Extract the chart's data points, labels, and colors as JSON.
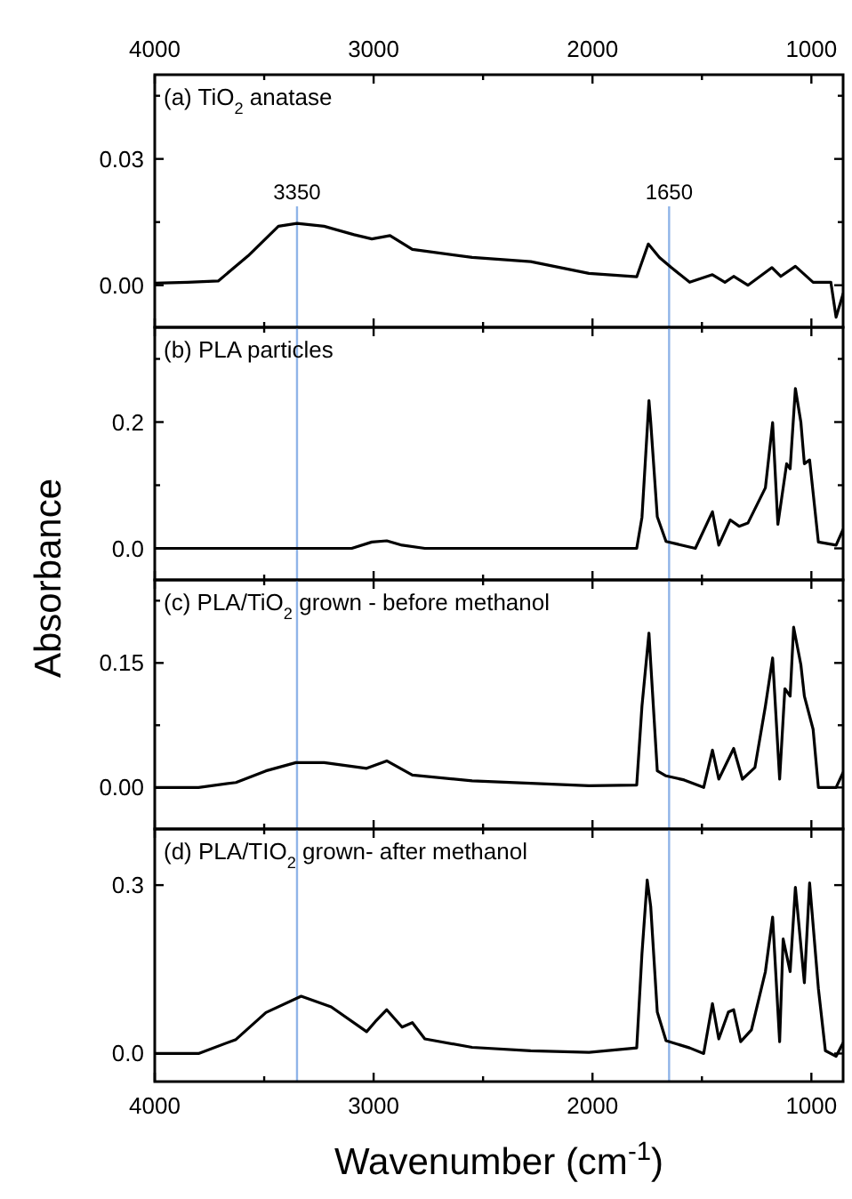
{
  "chart_data": [
    {
      "type": "line",
      "annotations": [
        "(a) TiO$_{2}$ anatase"
      ],
      "xlim": [
        4000,
        855
      ],
      "xticks": [
        4000,
        {
          "value": 3500,
          "label": null
        },
        3000,
        {
          "value": 2500,
          "label": null
        },
        2000,
        {
          "value": 1500,
          "label": null
        },
        1000
      ],
      "x2lim": [
        4000,
        855
      ],
      "x2ticks": [
        4000,
        {
          "value": 3500,
          "label": null
        },
        3000,
        {
          "value": 2500,
          "label": null
        },
        2000,
        {
          "value": 1500,
          "label": null
        },
        1000
      ],
      "ylim": [
        -0.01,
        0.05
      ],
      "yticks": [
        {
          "value": 0,
          "label": "0.00"
        },
        {
          "value": 0.015,
          "label": null
        },
        0.03,
        {
          "value": 0.045,
          "label": null
        }
      ],
      "tick_labels": "y",
      "ref_lines": [
        {
          "axis": "x",
          "value": 3350,
          "label": "3350",
          "color": "#8fb4e8"
        },
        {
          "axis": "x",
          "value": 1650,
          "label": "1650",
          "color": "#8fb4e8"
        }
      ],
      "series": [
        {
          "color": "#000000",
          "x": [
            4000,
            3850,
            3710,
            3573,
            3435,
            3350,
            3226,
            3089,
            3008,
            2925,
            2823,
            2550,
            2282,
            2016,
            1798,
            1745,
            1694,
            1640,
            1556,
            1452,
            1395,
            1355,
            1290,
            1180,
            1140,
            1073,
            992,
            911,
            887,
            855
          ],
          "values": [
            0.0005,
            0.0007,
            0.001,
            0.007,
            0.014,
            0.0147,
            0.014,
            0.012,
            0.011,
            0.0118,
            0.0085,
            0.0066,
            0.0056,
            0.0028,
            0.002,
            0.0098,
            0.0066,
            0.0042,
            0.0007,
            0.0025,
            0.0007,
            0.0021,
            0.0,
            0.0042,
            0.0021,
            0.0045,
            0.0007,
            0.0007,
            -0.0076,
            -0.002
          ]
        }
      ]
    },
    {
      "type": "line",
      "annotations": [
        "(b) PLA particles"
      ],
      "xlim": [
        4000,
        855
      ],
      "xticks": [
        4000,
        {
          "value": 3500,
          "label": null
        },
        3000,
        {
          "value": 2500,
          "label": null
        },
        2000,
        {
          "value": 1500,
          "label": null
        },
        1000
      ],
      "ylim": [
        -0.05,
        0.35
      ],
      "yticks": [
        {
          "value": 0,
          "label": "0.0"
        },
        {
          "value": 0.1,
          "label": null
        },
        0.2,
        {
          "value": 0.3,
          "label": null
        }
      ],
      "tick_labels": "y",
      "ref_lines": [
        {
          "axis": "x",
          "value": 3350,
          "color": "#8fb4e8"
        },
        {
          "axis": "x",
          "value": 1650,
          "color": "#8fb4e8"
        }
      ],
      "series": [
        {
          "color": "#000000",
          "x": [
            4000,
            3500,
            3100,
            3008,
            2940,
            2870,
            2766,
            2300,
            1798,
            1774,
            1742,
            1734,
            1704,
            1664,
            1530,
            1452,
            1423,
            1371,
            1330,
            1290,
            1210,
            1177,
            1153,
            1113,
            1097,
            1073,
            1048,
            1032,
            1008,
            968,
            887,
            855
          ],
          "values": [
            0.0,
            0.0,
            0.0,
            0.01,
            0.012,
            0.005,
            0.0,
            0.0,
            0.0,
            0.049,
            0.234,
            0.2,
            0.05,
            0.011,
            0.0,
            0.058,
            0.005,
            0.045,
            0.035,
            0.04,
            0.096,
            0.199,
            0.038,
            0.134,
            0.126,
            0.253,
            0.2,
            0.134,
            0.14,
            0.01,
            0.005,
            0.03
          ]
        }
      ]
    },
    {
      "type": "line",
      "ylabel": "Absorbance",
      "annotations": [
        "(c) PLA/TiO$_{2}$ grown - before methanol"
      ],
      "xlim": [
        4000,
        855
      ],
      "xticks": [
        4000,
        {
          "value": 3500,
          "label": null
        },
        3000,
        {
          "value": 2500,
          "label": null
        },
        2000,
        {
          "value": 1500,
          "label": null
        },
        1000
      ],
      "ylim": [
        -0.05,
        0.25
      ],
      "yticks": [
        {
          "value": 0,
          "label": "0.00"
        },
        {
          "value": 0.075,
          "label": null
        },
        0.15,
        {
          "value": 0.225,
          "label": null
        }
      ],
      "tick_labels": "y",
      "ref_lines": [
        {
          "axis": "x",
          "value": 3350,
          "color": "#8fb4e8"
        },
        {
          "axis": "x",
          "value": 1650,
          "color": "#8fb4e8"
        }
      ],
      "series": [
        {
          "color": "#000000",
          "x": [
            4000,
            3800,
            3629,
            3492,
            3355,
            3226,
            3032,
            2940,
            2823,
            2550,
            2282,
            2016,
            1798,
            1774,
            1742,
            1734,
            1704,
            1664,
            1581,
            1492,
            1452,
            1423,
            1355,
            1315,
            1258,
            1210,
            1177,
            1145,
            1121,
            1097,
            1081,
            1048,
            1032,
            992,
            968,
            887,
            855
          ],
          "values": [
            0.0,
            0.0,
            0.006,
            0.02,
            0.03,
            0.03,
            0.023,
            0.032,
            0.015,
            0.008,
            0.005,
            0.002,
            0.003,
            0.098,
            0.186,
            0.15,
            0.02,
            0.014,
            0.009,
            0.0,
            0.045,
            0.01,
            0.047,
            0.01,
            0.024,
            0.098,
            0.156,
            0.01,
            0.119,
            0.11,
            0.193,
            0.148,
            0.11,
            0.07,
            0.0,
            0.0,
            0.018
          ]
        }
      ]
    },
    {
      "type": "line",
      "xlabel": "Wavenumber (cm$^{-1}$)",
      "annotations": [
        "(d) PLA/TIO$_{2}$ grown- after methanol"
      ],
      "xlim": [
        4000,
        855
      ],
      "xticks": [
        4000,
        {
          "value": 3500,
          "label": null
        },
        3000,
        {
          "value": 2500,
          "label": null
        },
        2000,
        {
          "value": 1500,
          "label": null
        },
        1000
      ],
      "ylim": [
        -0.05,
        0.4
      ],
      "yticks": [
        {
          "value": 0,
          "label": "0.0"
        },
        0.3
      ],
      "ref_lines": [
        {
          "axis": "x",
          "value": 3350,
          "color": "#8fb4e8"
        },
        {
          "axis": "x",
          "value": 1650,
          "color": "#8fb4e8"
        }
      ],
      "series": [
        {
          "color": "#000000",
          "x": [
            4000,
            3800,
            3629,
            3492,
            3331,
            3194,
            3032,
            2992,
            2940,
            2870,
            2823,
            2766,
            2550,
            2282,
            2016,
            1798,
            1774,
            1750,
            1734,
            1704,
            1664,
            1556,
            1492,
            1452,
            1423,
            1379,
            1355,
            1323,
            1274,
            1210,
            1177,
            1145,
            1129,
            1097,
            1073,
            1032,
            1008,
            968,
            936,
            887,
            855
          ],
          "values": [
            0.0,
            0.0,
            0.025,
            0.073,
            0.102,
            0.083,
            0.039,
            0.057,
            0.078,
            0.047,
            0.055,
            0.026,
            0.011,
            0.005,
            0.002,
            0.01,
            0.178,
            0.309,
            0.262,
            0.074,
            0.023,
            0.01,
            0.0,
            0.089,
            0.026,
            0.074,
            0.078,
            0.021,
            0.042,
            0.146,
            0.243,
            0.021,
            0.204,
            0.146,
            0.296,
            0.126,
            0.304,
            0.116,
            0.005,
            -0.005,
            0.019
          ]
        }
      ]
    }
  ]
}
